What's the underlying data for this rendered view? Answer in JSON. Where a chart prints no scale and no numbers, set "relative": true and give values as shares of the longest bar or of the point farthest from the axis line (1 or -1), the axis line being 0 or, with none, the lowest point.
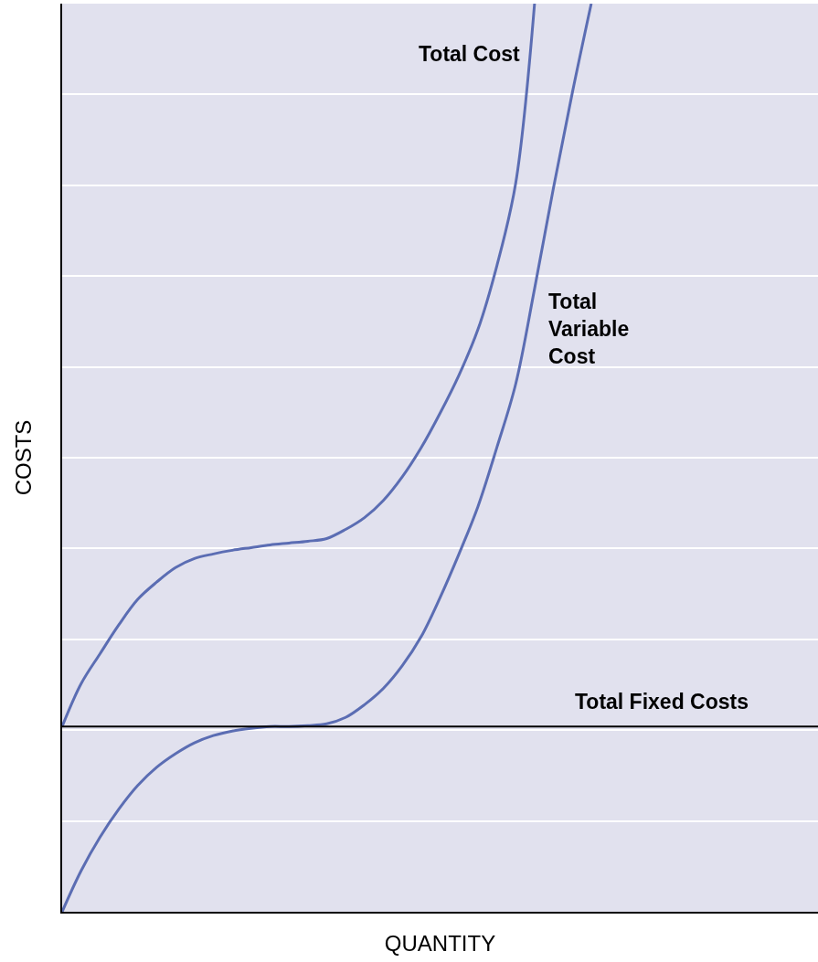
{
  "chart_data": {
    "type": "line",
    "relative": true,
    "xlabel": "QUANTITY",
    "ylabel": "COSTS",
    "categories": [
      null,
      null,
      null,
      null,
      null,
      null,
      null,
      null,
      null,
      null,
      null,
      null,
      null,
      null,
      null,
      null,
      null,
      null,
      null,
      null,
      null,
      null,
      null,
      null,
      null,
      null,
      null,
      null,
      null,
      null,
      null,
      null,
      null,
      null,
      null,
      null,
      null,
      null,
      null,
      null,
      null
    ],
    "series": [
      {
        "name": "Total Cost",
        "color": "#5b6db3",
        "values": [
          0.204,
          0.251,
          0.284,
          0.316,
          0.344,
          0.363,
          0.379,
          0.389,
          0.394,
          0.398,
          0.401,
          0.404,
          0.406,
          0.408,
          0.411,
          0.421,
          0.434,
          0.453,
          0.479,
          0.511,
          0.549,
          0.591,
          0.641,
          0.711,
          0.802,
          1,
          null,
          null,
          null,
          null,
          null,
          null,
          null,
          null,
          null,
          null,
          null,
          null,
          null,
          null,
          null
        ]
      },
      {
        "name": "Total Variable Cost",
        "color": "#5b6db3",
        "values": [
          0,
          0.045,
          0.082,
          0.113,
          0.139,
          0.159,
          0.174,
          0.186,
          0.194,
          0.199,
          0.202,
          0.204,
          0.204,
          0.205,
          0.207,
          0.214,
          0.228,
          0.246,
          0.271,
          0.303,
          0.346,
          0.394,
          0.446,
          0.511,
          0.581,
          0.686,
          0.797,
          0.902,
          1,
          null,
          null,
          null,
          null,
          null,
          null,
          null,
          null,
          null,
          null,
          null,
          null
        ]
      }
    ],
    "ref_lines": [
      {
        "axis": "y",
        "value": 0.204,
        "label": "Total Fixed Costs",
        "color": "#000000"
      }
    ],
    "grid": "y",
    "legend": false,
    "marker": "none",
    "line_style": "solid"
  }
}
